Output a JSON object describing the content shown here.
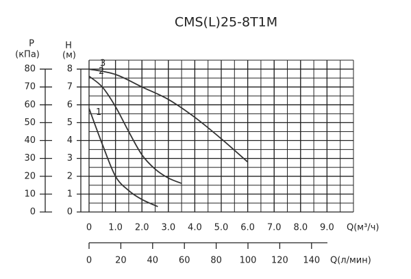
{
  "chart_data": {
    "type": "line",
    "title": "CMS(L)25-8T1M",
    "ylabel": "H",
    "yunit": "(м)",
    "y2label": "P",
    "y2unit": "(кПа)",
    "xlabel": "Q(м³/ч)",
    "x2label": "Q(л/мин)",
    "xlim": [
      0,
      10
    ],
    "xticks": [
      0,
      {
        "value": 1,
        "label": "1.0"
      },
      {
        "value": 2,
        "label": "2.0"
      },
      {
        "value": 3,
        "label": "3.0"
      },
      {
        "value": 4,
        "label": "4.0"
      },
      {
        "value": 5,
        "label": "5.0"
      },
      {
        "value": 6,
        "label": "6.0"
      },
      {
        "value": 7,
        "label": "7.0"
      },
      {
        "value": 8,
        "label": "8.0"
      },
      {
        "value": 9,
        "label": "9.0"
      }
    ],
    "x2lim": [
      0,
      150
    ],
    "x2ticks": [
      0,
      20,
      40,
      60,
      80,
      100,
      120,
      140
    ],
    "ylim": [
      0,
      8.5
    ],
    "yticks": [
      0,
      1,
      2,
      3,
      4,
      5,
      6,
      7,
      8
    ],
    "y2lim": [
      0,
      85
    ],
    "y2ticks": [
      0,
      10,
      20,
      30,
      40,
      50,
      60,
      70,
      80
    ],
    "grid": true,
    "series": [
      {
        "name": "1",
        "color": "#333333",
        "x": [
          0,
          0.5,
          1.0,
          1.5,
          2.0,
          2.6
        ],
        "values": [
          5.8,
          3.8,
          2.0,
          1.2,
          0.7,
          0.3
        ]
      },
      {
        "name": "2",
        "color": "#333333",
        "x": [
          0,
          0.5,
          1.0,
          1.5,
          2.0,
          2.5,
          3.0,
          3.5
        ],
        "values": [
          7.6,
          7.0,
          5.9,
          4.5,
          3.2,
          2.4,
          1.9,
          1.6
        ]
      },
      {
        "name": "3",
        "color": "#333333",
        "x": [
          0,
          1.0,
          2.0,
          3.0,
          4.0,
          5.0,
          6.0
        ],
        "values": [
          8.0,
          7.7,
          7.0,
          6.3,
          5.3,
          4.1,
          2.8
        ]
      }
    ]
  }
}
